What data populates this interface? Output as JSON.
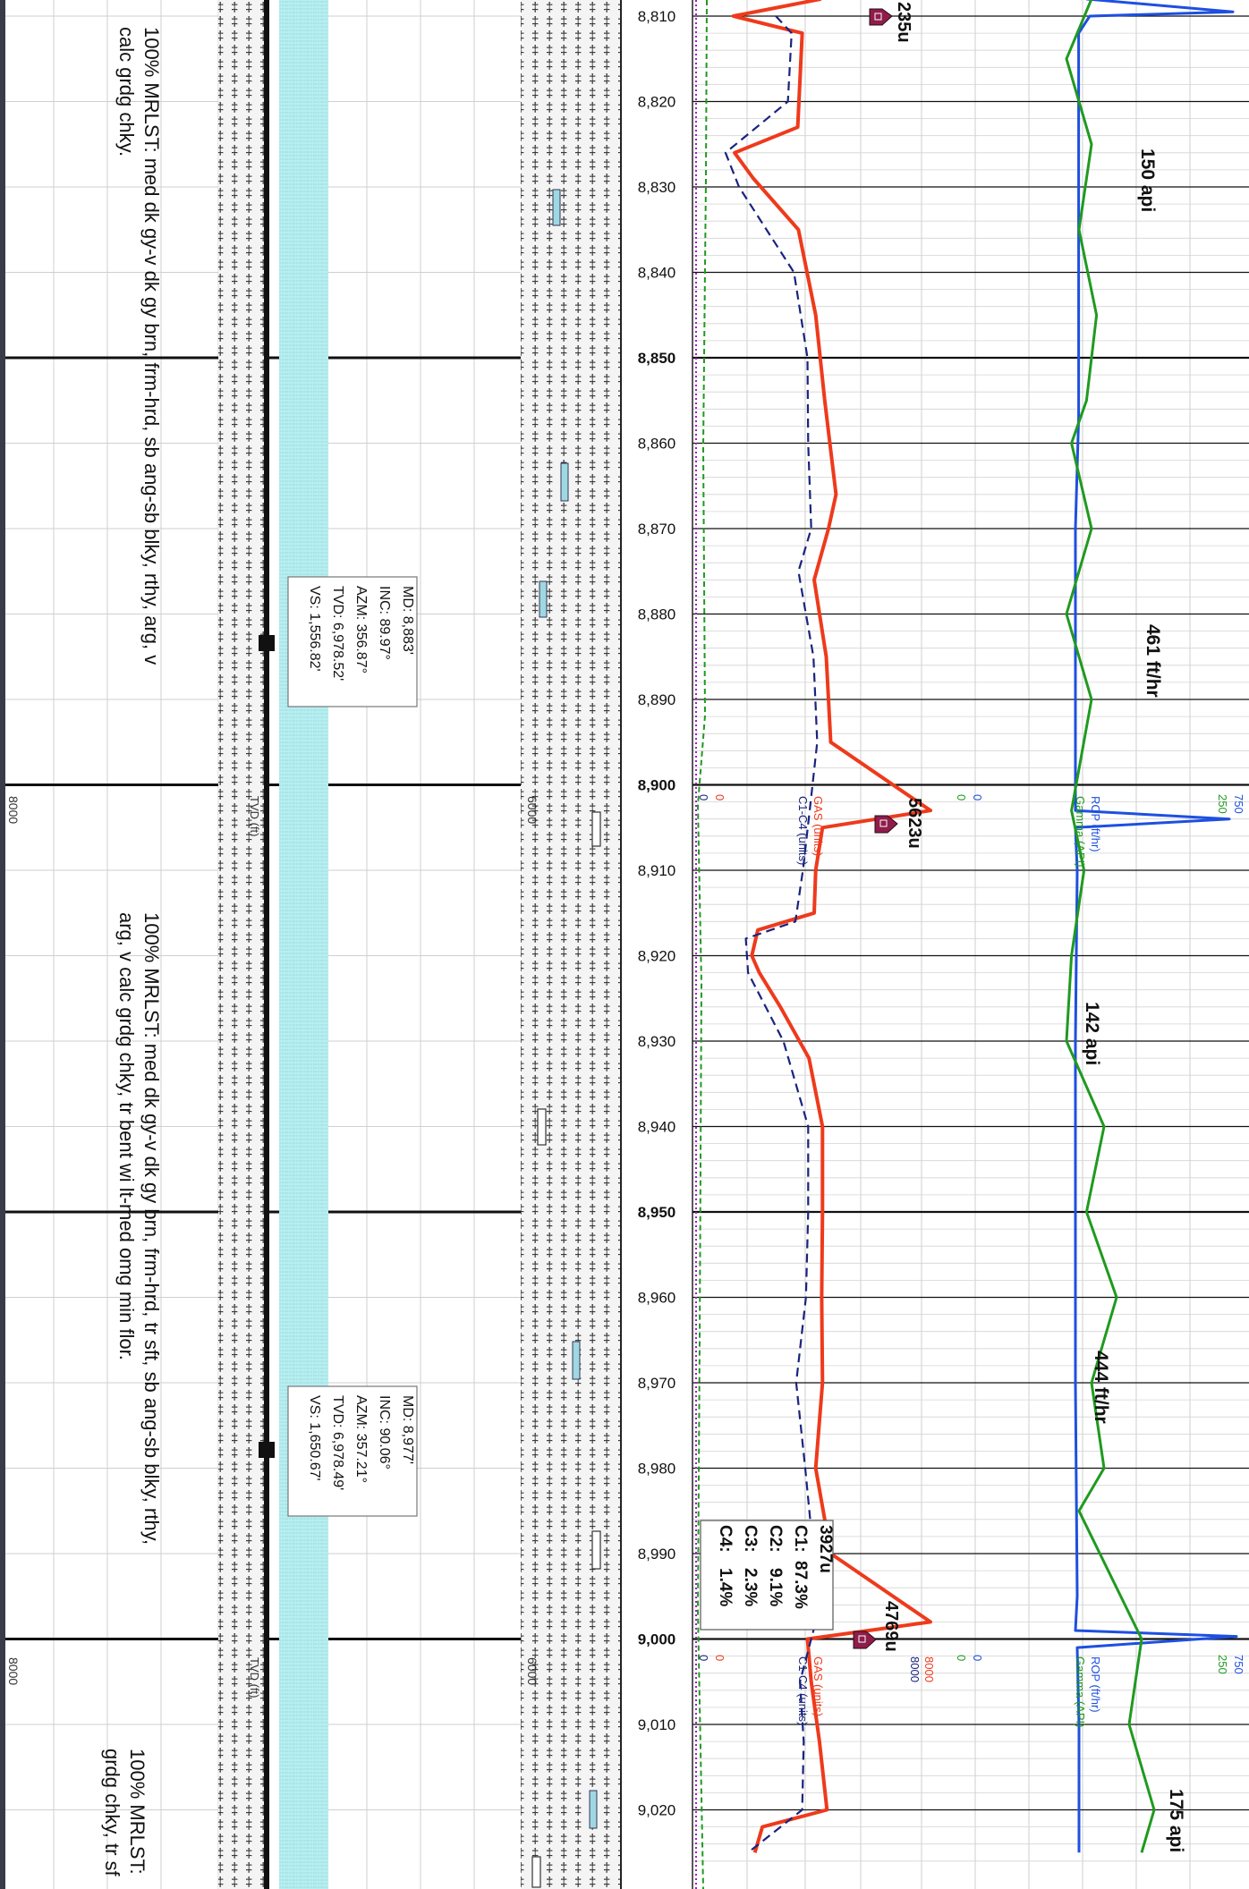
{
  "depth_track": {
    "unit": "ft",
    "labels": [
      "8,810",
      "8,820",
      "8,830",
      "8,840",
      "8,850",
      "8,860",
      "8,870",
      "8,880",
      "8,890",
      "8,900",
      "8,910",
      "8,920",
      "8,930",
      "8,940",
      "8,950",
      "8,960",
      "8,970",
      "8,980",
      "8,990",
      "9,000",
      "9,010",
      "9,020"
    ],
    "bold_labels": [
      "8,850",
      "8,900",
      "8,950",
      "9,000"
    ]
  },
  "descriptions": [
    {
      "lines": [
        "100% MRLST: med dk gy-v dk gy brn, frm-hrd, sb ang-sb blky, rthy, arg, v",
        "calc grdg chky."
      ]
    },
    {
      "lines": [
        "100% MRLST: med dk gy-v dk gy brn, frm-hrd, tr sft, sb ang-sb blky, rthy,",
        "arg, v calc grdg chky, tr bent wi lt-med omg min flor."
      ]
    },
    {
      "lines": [
        "100% MRLST:",
        "grdg chky, tr sf"
      ]
    }
  ],
  "survey_boxes": [
    {
      "md": "MD: 8,883'",
      "inc": "INC: 89.97°",
      "azm": "AZM: 356.87°",
      "tvd": "TVD: 6,978.52'",
      "vs": "VS: 1,556.82'"
    },
    {
      "md": "MD: 8,977'",
      "inc": "INC: 90.06°",
      "azm": "AZM: 357.21°",
      "tvd": "TVD: 6,978.49'",
      "vs": "VS: 1,650.67'"
    }
  ],
  "tvd_scale": {
    "left": "8000",
    "right": "6000",
    "label": "TVD (ft)"
  },
  "gas_scale": {
    "gas_label": "GAS (units)",
    "c1c4_label": "C1-C4 (units)",
    "min": "0",
    "max": "8000",
    "c1c4_min": "0"
  },
  "rop_scale": {
    "rop_label": "ROP (ft/hr)",
    "gamma_label": "Gamma (API)",
    "rop_min": "0",
    "rop_max": "750",
    "gamma_min": "0",
    "gamma_max": "250"
  },
  "annotations": {
    "gas_peaks": [
      "235u",
      "5623u",
      "4769u"
    ],
    "gamma": [
      "150 api",
      "142 api",
      "175 api"
    ],
    "rop": [
      "461 ft/hr",
      "444 ft/hr"
    ]
  },
  "gas_composition": {
    "total": "3927u",
    "c1_label": "C1:",
    "c1": "87.3%",
    "c2_label": "C2:",
    "c2": "9.1%",
    "c3_label": "C3:",
    "c3": "2.3%",
    "c4_label": "C4:",
    "c4": "1.4%"
  },
  "colors": {
    "gas": "#ee3a1c",
    "c1c4": "#1a237e",
    "rop": "#1e4fe0",
    "gamma": "#1f9a1f",
    "cyan": "#b7eef0",
    "marker": "#8e1d4a",
    "grid": "#c8c8c8"
  },
  "chart_data": {
    "type": "line",
    "x_unit": "depth (ft)",
    "series": [
      {
        "name": "GAS (units)",
        "x": [
          8808,
          8810,
          8812,
          8823,
          8826,
          8829,
          8835,
          8845,
          8855,
          8866,
          8870,
          8876,
          8885,
          8895,
          8903,
          8905,
          8910,
          8915,
          8917,
          8920,
          8922,
          8926,
          8932,
          8940,
          8950,
          8960,
          8970,
          8980,
          8990,
          8998,
          9000,
          9005,
          9012,
          9020,
          9022,
          9025
        ],
        "values": [
          1400,
          235,
          1150,
          1090,
          250,
          500,
          1100,
          1330,
          1450,
          1600,
          1500,
          1310,
          1470,
          1530,
          5623,
          1420,
          1330,
          1310,
          560,
          480,
          580,
          860,
          1240,
          1420,
          1420,
          1410,
          1420,
          1330,
          1530,
          4769,
          1220,
          1270,
          1380,
          1480,
          620,
          520
        ]
      },
      {
        "name": "C1-C4 (units)",
        "x": [
          8810,
          8812,
          8820,
          8826,
          8830,
          8840,
          8850,
          8860,
          8870,
          8875,
          8885,
          8895,
          8903,
          8910,
          8916,
          8918,
          8922,
          8930,
          8940,
          8950,
          8960,
          8970,
          8980,
          8990,
          8998,
          9005,
          9012,
          9020,
          9025
        ],
        "values": [
          800,
          1010,
          960,
          130,
          310,
          1040,
          1220,
          1230,
          1270,
          1100,
          1300,
          1350,
          1250,
          1160,
          1060,
          400,
          430,
          900,
          1230,
          1230,
          1200,
          1070,
          1190,
          1300,
          1330,
          1120,
          1170,
          1150,
          430
        ]
      },
      {
        "name": "ROP (ft/hr)",
        "x": [
          8808,
          8809.5,
          8810,
          8812,
          8850,
          8857,
          8870,
          8890,
          8903,
          8904,
          8905,
          8910,
          8930,
          8950,
          8970,
          8995,
          8999,
          8999.7,
          9001,
          9010,
          9025
        ],
        "values": [
          440,
          30,
          430,
          461,
          461,
          461,
          470,
          470,
          470,
          40,
          470,
          465,
          470,
          470,
          470,
          465,
          470,
          20,
          465,
          460,
          460
        ]
      },
      {
        "name": "Gamma (API)",
        "x": [
          8808,
          8815,
          8825,
          8835,
          8845,
          8855,
          8860,
          8870,
          8880,
          8890,
          8903,
          8910,
          8920,
          8930,
          8940,
          8950,
          8960,
          8970,
          8980,
          8985,
          9000,
          9010,
          9020,
          9025
        ],
        "values": [
          150,
          140,
          150,
          145,
          152,
          148,
          142,
          150,
          140,
          150,
          142,
          147,
          142,
          140,
          155,
          148,
          160,
          150,
          155,
          145,
          170,
          165,
          175,
          170
        ]
      }
    ],
    "depth_range": [
      8808,
      9025
    ]
  }
}
